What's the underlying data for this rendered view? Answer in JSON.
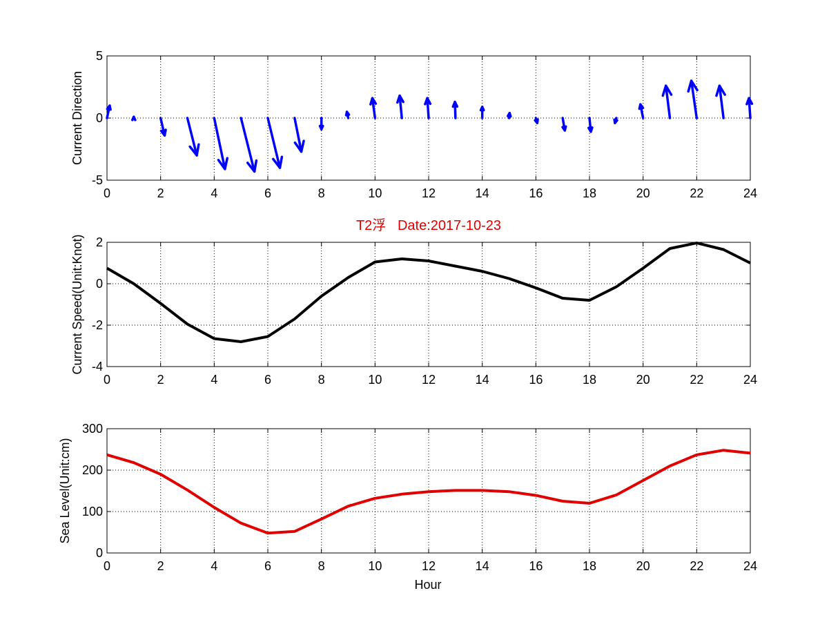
{
  "chart_data": [
    {
      "type": "quiver",
      "ylabel": "Current Direction",
      "xlim": [
        0,
        24
      ],
      "ylim": [
        -5,
        5
      ],
      "xticks": [
        0,
        2,
        4,
        6,
        8,
        10,
        12,
        14,
        16,
        18,
        20,
        22,
        24
      ],
      "yticks": [
        -5,
        0,
        5
      ],
      "grid": true,
      "color": "#0000ff",
      "hours": [
        0,
        1,
        2,
        3,
        4,
        5,
        6,
        7,
        8,
        9,
        10,
        11,
        12,
        13,
        14,
        15,
        16,
        17,
        18,
        19,
        20,
        21,
        22,
        23,
        24
      ],
      "u": [
        0.1,
        0.0,
        0.15,
        0.35,
        0.4,
        0.5,
        0.45,
        0.25,
        0.0,
        -0.05,
        -0.1,
        -0.08,
        -0.05,
        -0.02,
        0.0,
        0.02,
        0.05,
        0.08,
        0.05,
        -0.05,
        -0.1,
        -0.15,
        -0.2,
        -0.15,
        -0.05
      ],
      "v": [
        1.0,
        0.1,
        -1.4,
        -3.0,
        -4.1,
        -4.3,
        -4.0,
        -2.7,
        -0.9,
        0.5,
        1.6,
        1.8,
        1.6,
        1.3,
        0.9,
        0.4,
        -0.4,
        -1.0,
        -1.1,
        -0.4,
        1.1,
        2.6,
        3.0,
        2.6,
        1.6
      ]
    },
    {
      "type": "line",
      "title": "T2浮   Date:2017-10-23",
      "title_color": "#e00000",
      "ylabel": "Current Speed(Unit:Knot)",
      "xlim": [
        0,
        24
      ],
      "ylim": [
        -4,
        2
      ],
      "xticks": [
        0,
        2,
        4,
        6,
        8,
        10,
        12,
        14,
        16,
        18,
        20,
        22,
        24
      ],
      "yticks": [
        -4,
        -2,
        0,
        2
      ],
      "grid": true,
      "series": [
        {
          "color": "#000000",
          "x": [
            0,
            1,
            2,
            3,
            4,
            5,
            6,
            7,
            8,
            9,
            10,
            11,
            12,
            13,
            14,
            15,
            16,
            17,
            18,
            19,
            20,
            21,
            22,
            23,
            24
          ],
          "y": [
            0.75,
            0.0,
            -0.95,
            -1.95,
            -2.65,
            -2.8,
            -2.55,
            -1.7,
            -0.6,
            0.3,
            1.05,
            1.2,
            1.1,
            0.85,
            0.6,
            0.25,
            -0.2,
            -0.7,
            -0.8,
            -0.15,
            0.75,
            1.7,
            1.97,
            1.65,
            1.0
          ]
        }
      ]
    },
    {
      "type": "line",
      "ylabel": "Sea Level(Unit:cm)",
      "xlabel": "Hour",
      "xlim": [
        0,
        24
      ],
      "ylim": [
        0,
        300
      ],
      "xticks": [
        0,
        2,
        4,
        6,
        8,
        10,
        12,
        14,
        16,
        18,
        20,
        22,
        24
      ],
      "yticks": [
        0,
        100,
        200,
        300
      ],
      "grid": true,
      "series": [
        {
          "color": "#e00000",
          "x": [
            0,
            1,
            2,
            3,
            4,
            5,
            6,
            7,
            8,
            9,
            10,
            11,
            12,
            13,
            14,
            15,
            16,
            17,
            18,
            19,
            20,
            21,
            22,
            23,
            24
          ],
          "y": [
            237,
            218,
            190,
            152,
            110,
            72,
            48,
            52,
            82,
            113,
            132,
            142,
            148,
            151,
            151,
            148,
            139,
            125,
            120,
            140,
            175,
            210,
            237,
            248,
            241
          ]
        }
      ]
    }
  ]
}
